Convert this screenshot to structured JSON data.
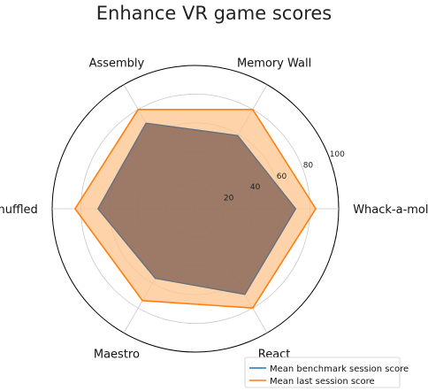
{
  "chart_data": {
    "type": "radar",
    "title": "Enhance VR game scores",
    "axes": [
      "Whack-a-mole",
      "Memory Wall",
      "Assembly",
      "Shuffled",
      "Maestro",
      "React"
    ],
    "rlim": [
      0,
      100
    ],
    "rticks": [
      20,
      40,
      60,
      80,
      100
    ],
    "grid": true,
    "legend_position": "bottom-right",
    "series": [
      {
        "name": "Mean benchmark session score",
        "values": [
          70,
          59,
          69,
          68,
          56,
          69
        ],
        "color": "#1f77b4",
        "fill": "#8b6a5c"
      },
      {
        "name": "Mean last session score",
        "values": [
          84,
          80,
          80,
          84,
          74,
          80
        ],
        "color": "#ff7f0e",
        "fill": "#fdc48e"
      }
    ]
  }
}
